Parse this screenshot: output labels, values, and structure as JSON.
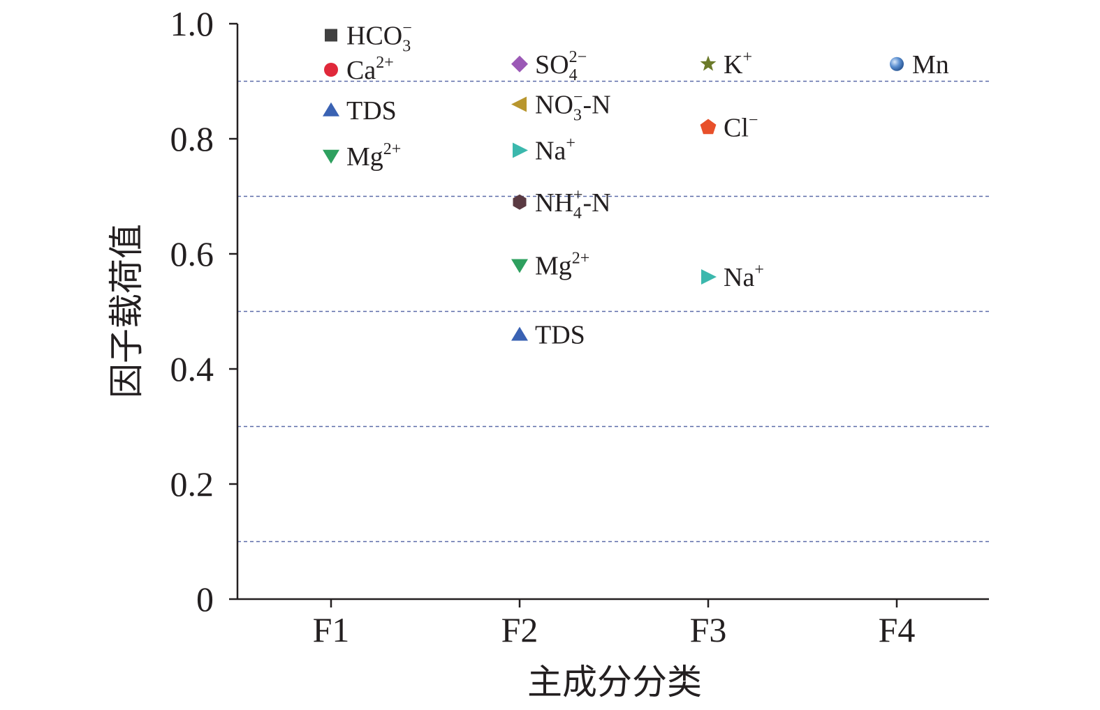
{
  "chart_data": {
    "type": "scatter",
    "xlabel": "主成分分类",
    "ylabel": "因子载荷值",
    "categories": [
      "F1",
      "F2",
      "F3",
      "F4"
    ],
    "ylim": [
      0,
      1.0
    ],
    "yticks": [
      "0",
      "0.2",
      "0.4",
      "0.6",
      "0.8",
      "1.0"
    ],
    "reference_lines": [
      0.1,
      0.3,
      0.5,
      0.7,
      0.9
    ],
    "grid": false,
    "points": [
      {
        "category": "F1",
        "y": 0.98,
        "label": {
          "base": "HCO",
          "sub": "3",
          "sup": "−",
          "suffix": ""
        },
        "marker": "square",
        "color": "#404040"
      },
      {
        "category": "F1",
        "y": 0.92,
        "label": {
          "base": "Ca",
          "sub": "",
          "sup": "2+",
          "suffix": ""
        },
        "marker": "circle",
        "color": "#e0283a"
      },
      {
        "category": "F1",
        "y": 0.85,
        "label": {
          "base": "TDS",
          "sub": "",
          "sup": "",
          "suffix": ""
        },
        "marker": "triangle-up",
        "color": "#3a62b3"
      },
      {
        "category": "F1",
        "y": 0.77,
        "label": {
          "base": "Mg",
          "sub": "",
          "sup": "2+",
          "suffix": ""
        },
        "marker": "triangle-down",
        "color": "#2ea05f"
      },
      {
        "category": "F2",
        "y": 0.93,
        "label": {
          "base": "SO",
          "sub": "4",
          "sup": "2−",
          "suffix": ""
        },
        "marker": "diamond",
        "color": "#9b59b6"
      },
      {
        "category": "F2",
        "y": 0.86,
        "label": {
          "base": "NO",
          "sub": "3",
          "sup": "−",
          "suffix": "-N"
        },
        "marker": "triangle-left",
        "color": "#b8962e"
      },
      {
        "category": "F2",
        "y": 0.78,
        "label": {
          "base": "Na",
          "sub": "",
          "sup": "+",
          "suffix": ""
        },
        "marker": "triangle-right",
        "color": "#3bb8ad"
      },
      {
        "category": "F2",
        "y": 0.69,
        "label": {
          "base": "NH",
          "sub": "4",
          "sup": "+",
          "suffix": "-N"
        },
        "marker": "hexagon",
        "color": "#5a3a42"
      },
      {
        "category": "F2",
        "y": 0.58,
        "label": {
          "base": "Mg",
          "sub": "",
          "sup": "2+",
          "suffix": ""
        },
        "marker": "triangle-down",
        "color": "#2ea05f"
      },
      {
        "category": "F2",
        "y": 0.46,
        "label": {
          "base": "TDS",
          "sub": "",
          "sup": "",
          "suffix": ""
        },
        "marker": "triangle-up",
        "color": "#3a62b3"
      },
      {
        "category": "F3",
        "y": 0.93,
        "label": {
          "base": "K",
          "sub": "",
          "sup": "+",
          "suffix": ""
        },
        "marker": "star",
        "color": "#6b7a2a"
      },
      {
        "category": "F3",
        "y": 0.82,
        "label": {
          "base": "Cl",
          "sub": "",
          "sup": "−",
          "suffix": ""
        },
        "marker": "pentagon",
        "color": "#e8502a"
      },
      {
        "category": "F3",
        "y": 0.56,
        "label": {
          "base": "Na",
          "sub": "",
          "sup": "+",
          "suffix": ""
        },
        "marker": "triangle-right",
        "color": "#3bb8ad"
      },
      {
        "category": "F4",
        "y": 0.93,
        "label": {
          "base": "Mn",
          "sub": "",
          "sup": "",
          "suffix": ""
        },
        "marker": "sphere",
        "color": "#5b8fd0"
      }
    ],
    "colors": {
      "axis": "#231f20",
      "reference_line": "#5a6aa8"
    }
  }
}
